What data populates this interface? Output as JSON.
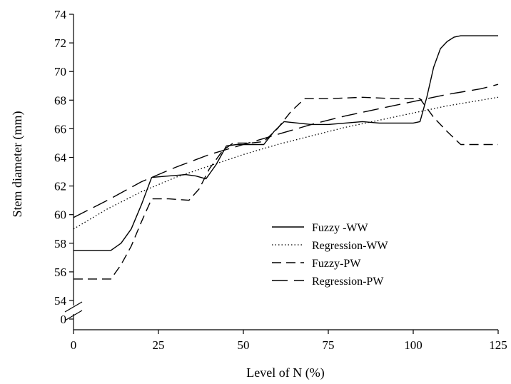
{
  "chart_data": {
    "type": "line",
    "xlabel": "Level of N (%)",
    "ylabel": "Stem diameter (mm)",
    "xlim": [
      0,
      125
    ],
    "ylim": [
      54,
      74
    ],
    "axis_break": "y between 0 and 54",
    "x_ticks": [
      "0",
      "25",
      "50",
      "75",
      "100",
      "125"
    ],
    "y_ticks": [
      "54",
      "56",
      "58",
      "60",
      "62",
      "64",
      "66",
      "68",
      "70",
      "72",
      "74"
    ],
    "y_zero_label": "0",
    "grid": false,
    "legend_position": "lower-center",
    "series": [
      {
        "name": "Fuzzy -WW",
        "style": "solid",
        "x": [
          0,
          11,
          14,
          17,
          20,
          23,
          28,
          33,
          36,
          39,
          42,
          45,
          48,
          52,
          56,
          59,
          62,
          66,
          70,
          75,
          80,
          85,
          90,
          95,
          100,
          102,
          104,
          106,
          108,
          110,
          112,
          114,
          117,
          120,
          125
        ],
        "y": [
          57.5,
          57.5,
          58.0,
          59.0,
          60.7,
          62.6,
          62.7,
          62.8,
          62.7,
          62.5,
          63.5,
          64.8,
          64.9,
          64.9,
          64.9,
          65.8,
          66.5,
          66.4,
          66.3,
          66.3,
          66.4,
          66.5,
          66.4,
          66.4,
          66.4,
          66.5,
          68.2,
          70.3,
          71.6,
          72.1,
          72.4,
          72.5,
          72.5,
          72.5,
          72.5
        ]
      },
      {
        "name": "Regression-WW",
        "style": "dotted",
        "x": [
          0,
          10,
          20,
          30,
          40,
          50,
          60,
          70,
          80,
          90,
          100,
          110,
          120,
          125
        ],
        "y": [
          59.0,
          60.4,
          61.6,
          62.6,
          63.4,
          64.2,
          64.9,
          65.5,
          66.1,
          66.6,
          67.1,
          67.6,
          68.0,
          68.2
        ]
      },
      {
        "name": "Fuzzy-PW",
        "style": "dashed",
        "x": [
          0,
          11,
          14,
          17,
          20,
          23,
          28,
          34,
          37,
          40,
          44,
          47,
          52,
          56,
          60,
          64,
          68,
          75,
          85,
          95,
          102,
          106,
          110,
          114,
          125
        ],
        "y": [
          55.5,
          55.5,
          56.5,
          57.8,
          59.5,
          61.1,
          61.1,
          61.0,
          61.8,
          63.2,
          64.5,
          65.0,
          65.0,
          65.1,
          66.0,
          67.2,
          68.1,
          68.1,
          68.2,
          68.1,
          68.1,
          66.8,
          65.8,
          64.9,
          64.9
        ]
      },
      {
        "name": "Regression-PW",
        "style": "longdash",
        "x": [
          0,
          10,
          20,
          30,
          40,
          50,
          60,
          70,
          80,
          90,
          100,
          110,
          120,
          125
        ],
        "y": [
          59.8,
          61.0,
          62.3,
          63.3,
          64.2,
          64.9,
          65.6,
          66.3,
          66.9,
          67.4,
          67.9,
          68.4,
          68.8,
          69.1
        ]
      }
    ]
  }
}
